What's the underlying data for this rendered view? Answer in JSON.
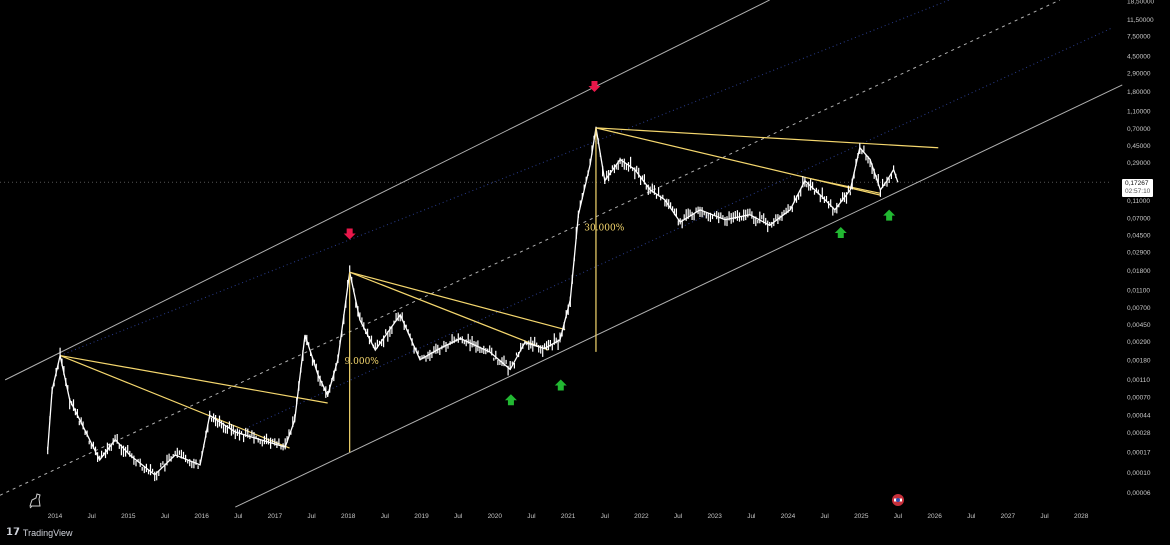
{
  "brand": {
    "name": "TradingView",
    "logo": "TV"
  },
  "price_tag": {
    "last_price": "0,17267",
    "countdown": "02:57:10"
  },
  "colors": {
    "candles": "#ffffff",
    "trendlines": "#f5d76e",
    "channel": "#cfcfcf",
    "dotted": "#2a3d8f",
    "sell_arrow": "#e8174a",
    "buy_arrow": "#22b832",
    "background": "#000000"
  },
  "chart_data": {
    "type": "line",
    "yscale": "log",
    "ylim": [
      5e-05,
      20
    ],
    "xlim": [
      2013.25,
      2028.45
    ],
    "grid": false,
    "y_ticks": [
      "18,50000",
      "11,50000",
      "7,50000",
      "4,50000",
      "2,90000",
      "1,80000",
      "1,10000",
      "0,70000",
      "0,45000",
      "0,29000",
      "0,11000",
      "0,07000",
      "0,04500",
      "0,02900",
      "0,01800",
      "0,01100",
      "0,00700",
      "0,00450",
      "0,00290",
      "0,00180",
      "0,00110",
      "0,00070",
      "0,00044",
      "0,00028",
      "0,00017",
      "0,00010",
      "0,00006"
    ],
    "y_tick_values": [
      18.5,
      11.5,
      7.5,
      4.5,
      2.9,
      1.8,
      1.1,
      0.7,
      0.45,
      0.29,
      0.11,
      0.07,
      0.045,
      0.029,
      0.018,
      0.011,
      0.007,
      0.0045,
      0.0029,
      0.0018,
      0.0011,
      0.0007,
      0.00044,
      0.00028,
      0.00017,
      0.0001,
      6e-05
    ],
    "x_ticks": [
      "2014",
      "Jul",
      "2015",
      "Jul",
      "2016",
      "Jul",
      "2017",
      "Jul",
      "2018",
      "Jul",
      "2019",
      "Jul",
      "2020",
      "Jul",
      "2021",
      "Jul",
      "2022",
      "Jul",
      "2023",
      "Jul",
      "2024",
      "Jul",
      "2025",
      "Jul",
      "2026",
      "Jul",
      "2027",
      "Jul",
      "2028"
    ],
    "x_tick_values": [
      2014,
      2014.5,
      2015,
      2015.5,
      2016,
      2016.5,
      2017,
      2017.5,
      2018,
      2018.5,
      2019,
      2019.5,
      2020,
      2020.5,
      2021,
      2021.5,
      2022,
      2022.5,
      2023,
      2023.5,
      2024,
      2024.5,
      2025,
      2025.5,
      2026,
      2026.5,
      2027,
      2027.5,
      2028
    ],
    "series": [
      {
        "values": [
          [
            2013.9,
            0.000176
          ],
          [
            2013.96,
            0.00082
          ],
          [
            2014.07,
            0.002
          ],
          [
            2014.2,
            0.00064
          ],
          [
            2014.41,
            0.00029
          ],
          [
            2014.61,
            0.000136
          ],
          [
            2014.82,
            0.00023
          ],
          [
            2015.02,
            0.000155
          ],
          [
            2015.36,
            9.3e-05
          ],
          [
            2015.64,
            0.000155
          ],
          [
            2015.98,
            0.00012
          ],
          [
            2016.11,
            0.00043
          ],
          [
            2016.46,
            0.00028
          ],
          [
            2016.8,
            0.00023
          ],
          [
            2017.14,
            0.00019
          ],
          [
            2017.27,
            0.00038
          ],
          [
            2017.41,
            0.0034
          ],
          [
            2017.59,
            0.00121
          ],
          [
            2017.72,
            0.00072
          ],
          [
            2017.86,
            0.0018
          ],
          [
            2018.02,
            0.0171
          ],
          [
            2018.16,
            0.005
          ],
          [
            2018.37,
            0.0023
          ],
          [
            2018.71,
            0.0057
          ],
          [
            2018.98,
            0.0018
          ],
          [
            2019.25,
            0.0024
          ],
          [
            2019.53,
            0.0031
          ],
          [
            2019.93,
            0.0022
          ],
          [
            2020.21,
            0.0014
          ],
          [
            2020.41,
            0.0028
          ],
          [
            2020.68,
            0.0024
          ],
          [
            2020.89,
            0.003
          ],
          [
            2021.03,
            0.0084
          ],
          [
            2021.14,
            0.075
          ],
          [
            2021.3,
            0.27
          ],
          [
            2021.38,
            0.7
          ],
          [
            2021.5,
            0.18
          ],
          [
            2021.71,
            0.31
          ],
          [
            2021.91,
            0.24
          ],
          [
            2022.12,
            0.142
          ],
          [
            2022.32,
            0.11
          ],
          [
            2022.53,
            0.062
          ],
          [
            2022.8,
            0.085
          ],
          [
            2023.14,
            0.066
          ],
          [
            2023.48,
            0.075
          ],
          [
            2023.75,
            0.057
          ],
          [
            2024.03,
            0.085
          ],
          [
            2024.23,
            0.18
          ],
          [
            2024.44,
            0.124
          ],
          [
            2024.64,
            0.085
          ],
          [
            2024.85,
            0.142
          ],
          [
            2024.98,
            0.42
          ],
          [
            2025.12,
            0.31
          ],
          [
            2025.26,
            0.142
          ],
          [
            2025.35,
            0.18
          ],
          [
            2025.44,
            0.24
          ],
          [
            2025.5,
            0.17267
          ]
        ]
      }
    ],
    "last_price": 0.17267,
    "channel_lines": [
      {
        "kind": "upper",
        "from": [
          2013.32,
          0.00107
        ],
        "to": [
          2023.75,
          18.8
        ]
      },
      {
        "kind": "middle-dashed",
        "from": [
          2013.25,
          5.5e-05
        ],
        "to": [
          2027.71,
          18.8
        ]
      },
      {
        "kind": "lower",
        "from": [
          2016.46,
          4.06e-05
        ],
        "to": [
          2028.56,
          2.11
        ]
      }
    ],
    "dotted_lines": [
      {
        "from": [
          2014.07,
          0.002
        ],
        "to": [
          2026.2,
          18.8
        ]
      },
      {
        "from": [
          2016.5,
          0.00028
        ],
        "to": [
          2028.4,
          9.0
        ]
      }
    ],
    "trend_lines": [
      {
        "from": [
          2014.07,
          0.002
        ],
        "to": [
          2017.72,
          0.00059
        ]
      },
      {
        "from": [
          2014.07,
          0.002
        ],
        "to": [
          2017.2,
          0.000185
        ]
      },
      {
        "from": [
          2018.02,
          0.0171
        ],
        "to": [
          2020.96,
          0.0039
        ]
      },
      {
        "from": [
          2018.02,
          0.0171
        ],
        "to": [
          2020.73,
          0.0023
        ]
      },
      {
        "from": [
          2021.38,
          0.7
        ],
        "to": [
          2026.05,
          0.42
        ]
      },
      {
        "from": [
          2021.38,
          0.7
        ],
        "to": [
          2025.26,
          0.124
        ]
      },
      {
        "from": [
          2024.3,
          0.19
        ],
        "to": [
          2025.26,
          0.13
        ]
      }
    ],
    "measure_lines": [
      {
        "from": [
          2018.02,
          0.000167
        ],
        "to": [
          2018.02,
          0.0171
        ],
        "label": "9.000%",
        "label_at": [
          2017.95,
          0.0016
        ]
      },
      {
        "from": [
          2021.38,
          0.0022
        ],
        "to": [
          2021.38,
          0.7
        ],
        "label": "30.000%",
        "label_at": [
          2021.22,
          0.05
        ]
      }
    ],
    "annotations": [
      {
        "type": "sell-arrow",
        "at": [
          2018.02,
          0.045
        ]
      },
      {
        "type": "sell-arrow",
        "at": [
          2021.36,
          2.0
        ]
      },
      {
        "type": "buy-arrow",
        "at": [
          2020.22,
          0.00065
        ]
      },
      {
        "type": "buy-arrow",
        "at": [
          2020.9,
          0.00095
        ]
      },
      {
        "type": "buy-arrow",
        "at": [
          2024.72,
          0.048
        ]
      },
      {
        "type": "buy-arrow",
        "at": [
          2025.38,
          0.075
        ]
      }
    ]
  }
}
